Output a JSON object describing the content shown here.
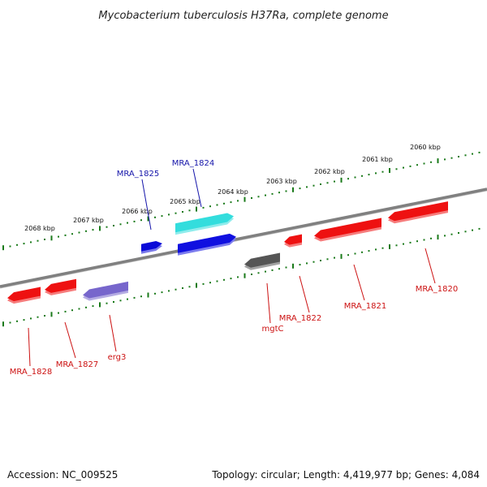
{
  "title": "Mycobacterium tuberculosis H37Ra, complete genome",
  "scale_ticks": [
    {
      "label": "2060 kbp"
    },
    {
      "label": "2061 kbp"
    },
    {
      "label": "2062 kbp"
    },
    {
      "label": "2063 kbp"
    },
    {
      "label": "2064 kbp"
    },
    {
      "label": "2065 kbp"
    },
    {
      "label": "2066 kbp"
    },
    {
      "label": "2067 kbp"
    },
    {
      "label": "2068 kbp"
    }
  ],
  "genes": [
    {
      "name": "MRA_1825",
      "strand": "+",
      "label_color": "#1515aa",
      "fill": "#0a0ad8"
    },
    {
      "name": "MRA_1824",
      "strand": "+",
      "label_color": "#1515aa",
      "fill": "#1010e0"
    },
    {
      "name": "",
      "strand": "+",
      "fill": "#33dddd"
    },
    {
      "name": "MRA_1820",
      "strand": "-",
      "label_color": "#cc1111",
      "fill": "#ee1111"
    },
    {
      "name": "MRA_1821",
      "strand": "-",
      "label_color": "#cc1111",
      "fill": "#ee1111"
    },
    {
      "name": "MRA_1822",
      "strand": "-",
      "label_color": "#cc1111",
      "fill": "#ee1111"
    },
    {
      "name": "mgtC",
      "strand": "-",
      "label_color": "#cc1111",
      "fill": "#555555"
    },
    {
      "name": "erg3",
      "strand": "-",
      "label_color": "#cc1111",
      "fill": "#7766cc"
    },
    {
      "name": "MRA_1827",
      "strand": "-",
      "label_color": "#cc1111",
      "fill": "#ee1111"
    },
    {
      "name": "MRA_1828",
      "strand": "-",
      "label_color": "#cc1111",
      "fill": "#ee1111"
    }
  ],
  "footer": {
    "accession": "Accession: NC_009525",
    "summary": "Topology: circular; Length: 4,419,977 bp; Genes: 4,084"
  },
  "colors": {
    "backbone": "#808080",
    "scale_dots": "#1a7a1a"
  }
}
